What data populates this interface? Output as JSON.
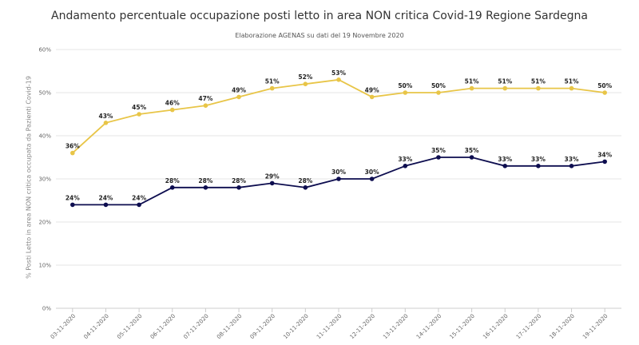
{
  "chart_data": {
    "type": "line",
    "title": "Andamento percentuale occupazione posti letto in area NON critica Covid-19 Regione Sardegna",
    "subtitle": "Elaborazione AGENAS su dati del 19 Novembre 2020",
    "ylabel": "% Posti Letto in area NON critica occupata da Pazienti Covid-19",
    "xlabel": "",
    "ylim": [
      0,
      60
    ],
    "yticks": [
      "0%",
      "10%",
      "20%",
      "30%",
      "40%",
      "50%",
      "60%"
    ],
    "grid": true,
    "legend": "none",
    "categories": [
      "03-11-2020",
      "04-11-2020",
      "05-11-2020",
      "06-11-2020",
      "07-11-2020",
      "08-11-2020",
      "09-11-2020",
      "10-11-2020",
      "11-11-2020",
      "12-11-2020",
      "13-11-2020",
      "14-11-2020",
      "15-11-2020",
      "16-11-2020",
      "17-11-2020",
      "18-11-2020",
      "19-11-2020"
    ],
    "series": [
      {
        "color": "#e8c547",
        "values": [
          36,
          43,
          45,
          46,
          47,
          49,
          51,
          52,
          53,
          49,
          50,
          50,
          51,
          51,
          51,
          51,
          50
        ],
        "labels": [
          "36%",
          "43%",
          "45%",
          "46%",
          "47%",
          "49%",
          "51%",
          "52%",
          "53%",
          "49%",
          "50%",
          "50%",
          "51%",
          "51%",
          "51%",
          "51%",
          "50%"
        ]
      },
      {
        "color": "#0d0d4f",
        "values": [
          24,
          24,
          24,
          28,
          28,
          28,
          29,
          28,
          30,
          30,
          33,
          35,
          35,
          33,
          33,
          33,
          34
        ],
        "labels": [
          "24%",
          "24%",
          "24%",
          "28%",
          "28%",
          "28%",
          "29%",
          "28%",
          "30%",
          "30%",
          "33%",
          "35%",
          "35%",
          "33%",
          "33%",
          "33%",
          "34%"
        ]
      }
    ]
  }
}
